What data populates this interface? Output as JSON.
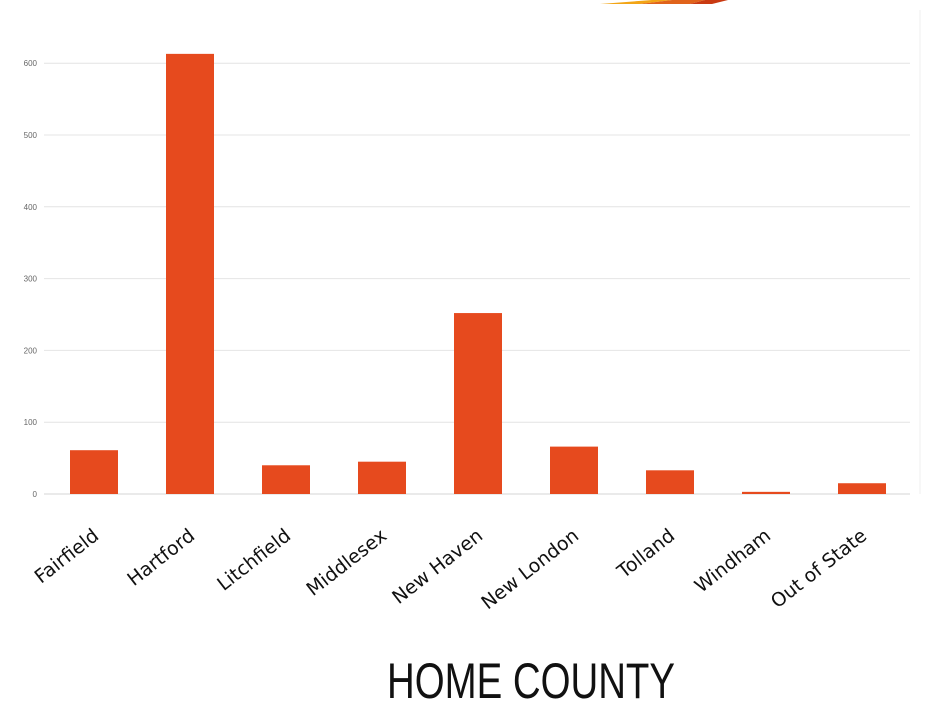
{
  "chart_data": {
    "type": "bar",
    "title": "",
    "xlabel": "HOME COUNTY",
    "ylabel": "",
    "categories": [
      "Fairfield",
      "Hartford",
      "Litchfield",
      "Middlesex",
      "New Haven",
      "New London",
      "Tolland",
      "Windham",
      "Out of State"
    ],
    "values": [
      61,
      613,
      40,
      45,
      252,
      66,
      33,
      3,
      15
    ],
    "ylim": [
      0,
      650
    ],
    "yticks": [
      0,
      100,
      200,
      300,
      400,
      500,
      600
    ],
    "grid": true,
    "legend": "none",
    "bar_color": "#e64a1e",
    "grid_color": "#e4e4e4"
  },
  "decorations": {
    "corner_shape_colors": [
      "#f2a516",
      "#e0631b",
      "#c93a12"
    ]
  }
}
